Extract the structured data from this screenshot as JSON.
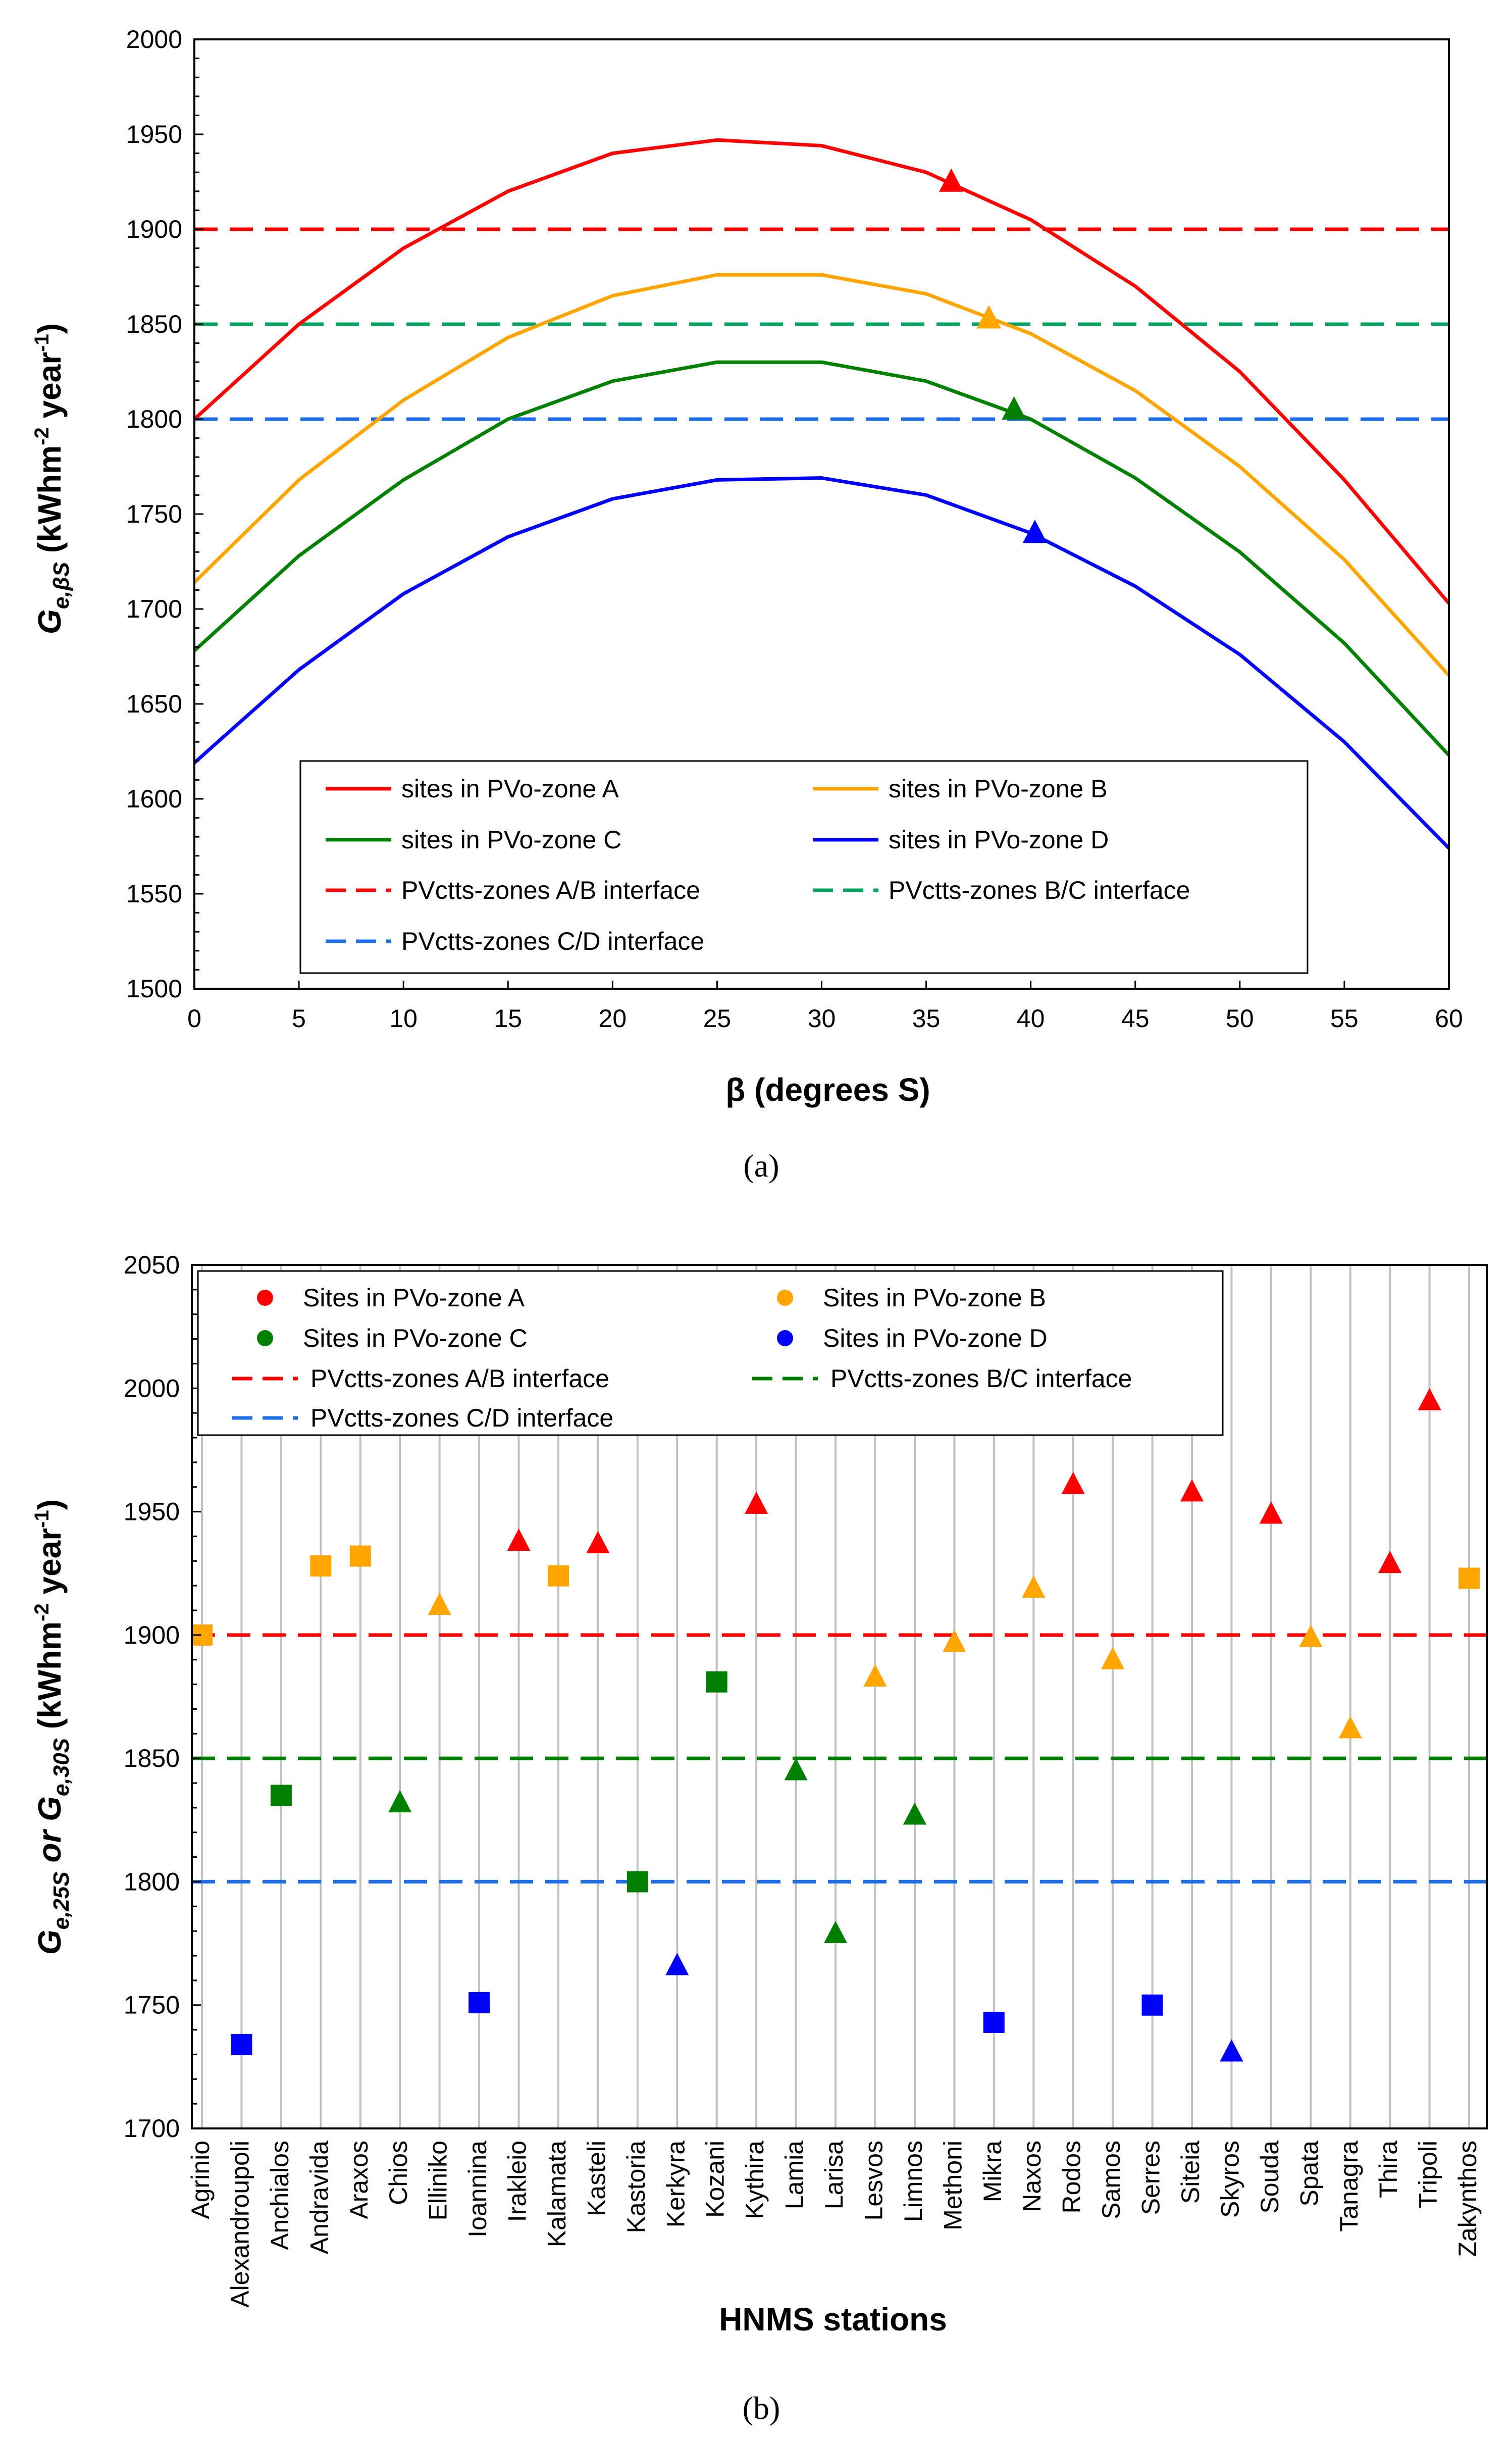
{
  "chart_data": [
    {
      "type": "line",
      "panel_label": "(a)",
      "xlabel": "β (degrees S)",
      "ylabel": "G",
      "ylabel_sub": "e,βS",
      "ylabel_unit_a": " (kWhm",
      "ylabel_sup1": "-2",
      "ylabel_unit_b": " year",
      "ylabel_sup2": "-1",
      "ylabel_unit_c": ")",
      "xlim": [
        0,
        60
      ],
      "ylim": [
        1500,
        2000
      ],
      "xticks": [
        0,
        5,
        10,
        15,
        20,
        25,
        30,
        35,
        40,
        45,
        50,
        55,
        60
      ],
      "yticks": [
        1500,
        1550,
        1600,
        1650,
        1700,
        1750,
        1800,
        1850,
        1900,
        1950,
        2000
      ],
      "x": [
        0,
        5,
        10,
        15,
        20,
        25,
        30,
        35,
        40,
        45,
        50,
        55,
        60
      ],
      "series": [
        {
          "name": "sites in PVo-zone A",
          "color": "#ff0000",
          "values": [
            1800,
            1850,
            1890,
            1920,
            1940,
            1947,
            1944,
            1930,
            1905,
            1870,
            1825,
            1768,
            1703
          ],
          "marker_x": 36.2,
          "marker_y": 1925
        },
        {
          "name": "sites in PVo-zone B",
          "color": "#ffa500",
          "values": [
            1714,
            1768,
            1810,
            1843,
            1865,
            1876,
            1876,
            1866,
            1845,
            1815,
            1775,
            1726,
            1665
          ],
          "marker_x": 38.0,
          "marker_y": 1853
        },
        {
          "name": "sites in PVo-zone C",
          "color": "#008000",
          "values": [
            1678,
            1728,
            1768,
            1800,
            1820,
            1830,
            1830,
            1820,
            1800,
            1769,
            1730,
            1682,
            1623
          ],
          "marker_x": 39.2,
          "marker_y": 1805
        },
        {
          "name": "sites in PVo-zone D",
          "color": "#0000ff",
          "values": [
            1619,
            1668,
            1708,
            1738,
            1758,
            1768,
            1769,
            1760,
            1740,
            1712,
            1676,
            1630,
            1574
          ],
          "marker_x": 40.2,
          "marker_y": 1740
        }
      ],
      "reference_lines": [
        {
          "name": "PVctts-zones A/B interface",
          "value": 1900,
          "color": "#ff0000"
        },
        {
          "name": "PVctts-zones B/C interface",
          "value": 1850,
          "color": "#00a060"
        },
        {
          "name": "PVctts-zones C/D interface",
          "value": 1800,
          "color": "#1e6fe8"
        }
      ]
    },
    {
      "type": "scatter",
      "panel_label": "(b)",
      "xlabel": "HNMS stations",
      "ylabel_a": "G",
      "ylabel_sub1": "e,25S",
      "ylabel_or": " or G",
      "ylabel_sub2": "e,30S",
      "ylabel_unit_a": "  (kWhm",
      "ylabel_sup1": "-2",
      "ylabel_unit_b": " year",
      "ylabel_sup2": "-1",
      "ylabel_unit_c": ")",
      "ylim": [
        1700,
        2050
      ],
      "yticks": [
        1700,
        1750,
        1800,
        1850,
        1900,
        1950,
        2000,
        2050
      ],
      "zone_colors": {
        "A": "#ff0000",
        "B": "#ffa500",
        "C": "#008000",
        "D": "#0000ff"
      },
      "legend": [
        {
          "name": "Sites in PVo-zone A",
          "color": "#ff0000",
          "style": "dot"
        },
        {
          "name": "Sites in PVo-zone B",
          "color": "#ffa500",
          "style": "dot"
        },
        {
          "name": "Sites in PVo-zone C",
          "color": "#008000",
          "style": "dot"
        },
        {
          "name": "Sites in PVo-zone D",
          "color": "#0000ff",
          "style": "dot"
        },
        {
          "name": "PVctts-zones A/B interface",
          "color": "#ff0000",
          "style": "dash"
        },
        {
          "name": "PVctts-zones B/C interface",
          "color": "#008000",
          "style": "dash"
        },
        {
          "name": "PVctts-zones C/D interface",
          "color": "#1e6fe8",
          "style": "dash"
        }
      ],
      "reference_lines": [
        {
          "value": 1900,
          "color": "#ff0000"
        },
        {
          "value": 1850,
          "color": "#008000"
        },
        {
          "value": 1800,
          "color": "#1e6fe8"
        }
      ],
      "stations": [
        {
          "name": "Agrinio",
          "value": 1900,
          "zone": "B",
          "marker": "square"
        },
        {
          "name": "Alexandroupoli",
          "value": 1734,
          "zone": "D",
          "marker": "square"
        },
        {
          "name": "Anchialos",
          "value": 1835,
          "zone": "C",
          "marker": "square"
        },
        {
          "name": "Andravida",
          "value": 1928,
          "zone": "B",
          "marker": "square"
        },
        {
          "name": "Araxos",
          "value": 1932,
          "zone": "B",
          "marker": "square"
        },
        {
          "name": "Chios",
          "value": 1832,
          "zone": "C",
          "marker": "triangle"
        },
        {
          "name": "Elliniko",
          "value": 1912,
          "zone": "B",
          "marker": "triangle"
        },
        {
          "name": "Ioannina",
          "value": 1751,
          "zone": "D",
          "marker": "square"
        },
        {
          "name": "Irakleio",
          "value": 1938,
          "zone": "A",
          "marker": "triangle"
        },
        {
          "name": "Kalamata",
          "value": 1924,
          "zone": "B",
          "marker": "square"
        },
        {
          "name": "Kasteli",
          "value": 1937,
          "zone": "A",
          "marker": "triangle"
        },
        {
          "name": "Kastoria",
          "value": 1800,
          "zone": "C",
          "marker": "square"
        },
        {
          "name": "Kerkyra",
          "value": 1766,
          "zone": "D",
          "marker": "triangle"
        },
        {
          "name": "Kozani",
          "value": 1881,
          "zone": "C",
          "marker": "square"
        },
        {
          "name": "Kythira",
          "value": 1953,
          "zone": "A",
          "marker": "triangle"
        },
        {
          "name": "Lamia",
          "value": 1845,
          "zone": "C",
          "marker": "triangle"
        },
        {
          "name": "Larisa",
          "value": 1779,
          "zone": "C",
          "marker": "triangle"
        },
        {
          "name": "Lesvos",
          "value": 1883,
          "zone": "B",
          "marker": "triangle"
        },
        {
          "name": "Limnos",
          "value": 1827,
          "zone": "C",
          "marker": "triangle"
        },
        {
          "name": "Methoni",
          "value": 1897,
          "zone": "B",
          "marker": "triangle"
        },
        {
          "name": "Mikra",
          "value": 1743,
          "zone": "D",
          "marker": "square"
        },
        {
          "name": "Naxos",
          "value": 1919,
          "zone": "B",
          "marker": "triangle"
        },
        {
          "name": "Rodos",
          "value": 1961,
          "zone": "A",
          "marker": "triangle"
        },
        {
          "name": "Samos",
          "value": 1890,
          "zone": "B",
          "marker": "triangle"
        },
        {
          "name": "Serres",
          "value": 1750,
          "zone": "D",
          "marker": "square"
        },
        {
          "name": "Siteia",
          "value": 1958,
          "zone": "A",
          "marker": "triangle"
        },
        {
          "name": "Skyros",
          "value": 1731,
          "zone": "D",
          "marker": "triangle"
        },
        {
          "name": "Souda",
          "value": 1949,
          "zone": "A",
          "marker": "triangle"
        },
        {
          "name": "Spata",
          "value": 1899,
          "zone": "B",
          "marker": "triangle"
        },
        {
          "name": "Tanagra",
          "value": 1862,
          "zone": "B",
          "marker": "triangle"
        },
        {
          "name": "Thira",
          "value": 1929,
          "zone": "A",
          "marker": "triangle"
        },
        {
          "name": "Tripoli",
          "value": 1995,
          "zone": "A",
          "marker": "triangle"
        },
        {
          "name": "Zakynthos",
          "value": 1923,
          "zone": "B",
          "marker": "square"
        }
      ]
    }
  ]
}
